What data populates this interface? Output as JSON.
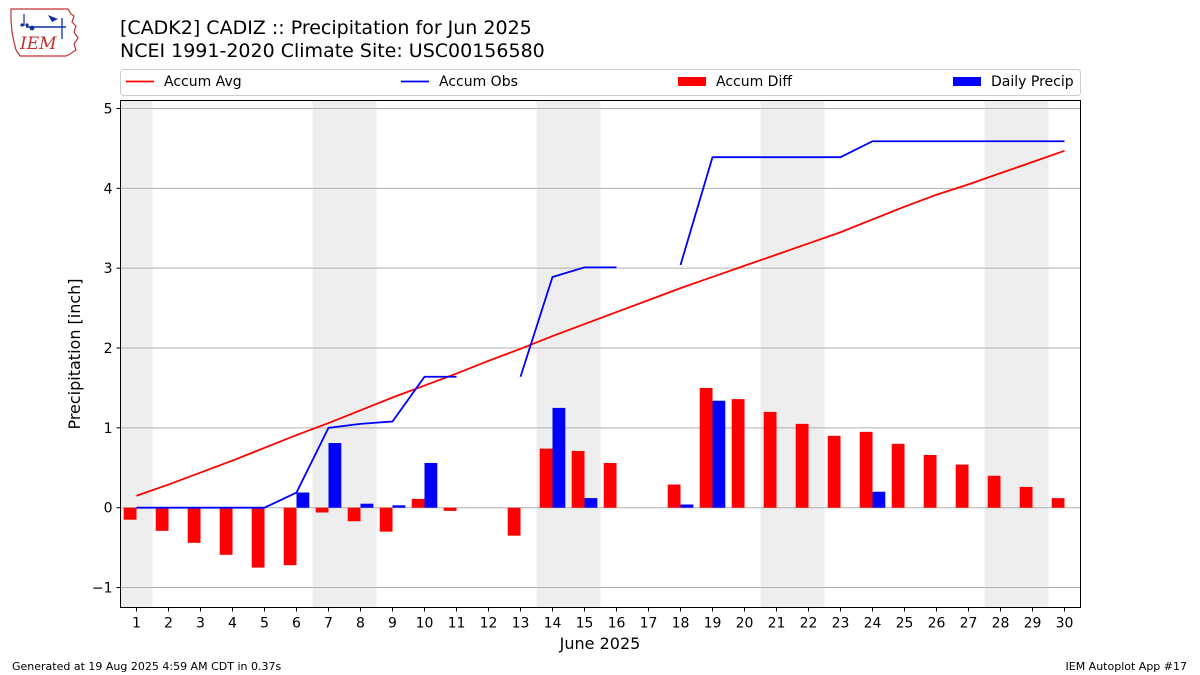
{
  "header": {
    "title_line1": "[CADK2] CADIZ :: Precipitation for Jun 2025",
    "title_line2": "NCEI 1991-2020 Climate Site: USC00156580"
  },
  "logo": {
    "text": "IEM"
  },
  "footer": {
    "generated": "Generated at 19 Aug 2025 4:59 AM CDT in 0.37s",
    "app": "IEM Autoplot App #17"
  },
  "chart_data": {
    "type": "bar",
    "xlabel": "June 2025",
    "ylabel": "Precipitation [inch]",
    "ylim": [
      -1.25,
      5.1
    ],
    "xlim": [
      0.5,
      30.5
    ],
    "yticks": [
      -1,
      0,
      1,
      2,
      3,
      4,
      5
    ],
    "ytick_labels": [
      "−1",
      "0",
      "1",
      "2",
      "3",
      "4",
      "5"
    ],
    "x": [
      1,
      2,
      3,
      4,
      5,
      6,
      7,
      8,
      9,
      10,
      11,
      12,
      13,
      14,
      15,
      16,
      17,
      18,
      19,
      20,
      21,
      22,
      23,
      24,
      25,
      26,
      27,
      28,
      29,
      30
    ],
    "grid": "horizontal",
    "legend": "top",
    "weekend_shading": [
      [
        0.5,
        1.5
      ],
      [
        6.5,
        8.5
      ],
      [
        13.5,
        15.5
      ],
      [
        20.5,
        22.5
      ],
      [
        27.5,
        29.5
      ]
    ],
    "colors": {
      "accum_avg": "#ff0000",
      "accum_obs": "#0000ff",
      "accum_diff": "#ff0000",
      "daily_precip": "#0000ff",
      "shading": "#eeeeee",
      "grid": "#b0b0b0"
    },
    "series": [
      {
        "name": "Accum Avg",
        "kind": "line",
        "values": [
          0.15,
          0.29,
          0.44,
          0.59,
          0.75,
          0.91,
          1.06,
          1.22,
          1.38,
          1.53,
          1.68,
          1.84,
          1.99,
          2.15,
          2.3,
          2.45,
          2.6,
          2.75,
          2.89,
          3.03,
          3.17,
          3.31,
          3.45,
          3.61,
          3.77,
          3.92,
          4.05,
          4.19,
          4.33,
          4.47
        ]
      },
      {
        "name": "Accum Obs",
        "kind": "line",
        "values": [
          0,
          0,
          0,
          0,
          0,
          0.19,
          1.0,
          1.05,
          1.08,
          1.64,
          1.64,
          null,
          1.64,
          2.89,
          3.01,
          3.01,
          null,
          3.04,
          4.39,
          4.39,
          4.39,
          4.39,
          4.39,
          4.59,
          4.59,
          4.59,
          4.59,
          4.59,
          4.59,
          4.59
        ]
      },
      {
        "name": "Accum Diff",
        "kind": "bar",
        "values": [
          -0.15,
          -0.29,
          -0.44,
          -0.59,
          -0.75,
          -0.72,
          -0.06,
          -0.17,
          -0.3,
          0.11,
          -0.04,
          null,
          -0.35,
          0.74,
          0.71,
          0.56,
          null,
          0.29,
          1.5,
          1.36,
          1.2,
          1.05,
          0.9,
          0.95,
          0.8,
          0.66,
          0.54,
          0.4,
          0.26,
          0.12
        ]
      },
      {
        "name": "Daily Precip",
        "kind": "bar",
        "values": [
          0,
          0,
          0,
          0,
          0,
          0.19,
          0.81,
          0.05,
          0.03,
          0.56,
          0,
          null,
          0,
          1.25,
          0.12,
          0,
          null,
          0.04,
          1.34,
          0,
          0,
          0,
          0,
          0.2,
          0,
          0,
          0,
          0,
          0,
          0
        ]
      }
    ]
  }
}
